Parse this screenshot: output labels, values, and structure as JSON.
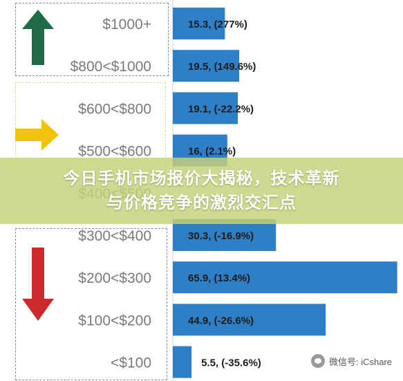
{
  "chart_data": {
    "type": "bar",
    "orientation": "horizontal",
    "categories": [
      "$1000+",
      "$800<$1000",
      "$600<$800",
      "$500<$600",
      "$400<$500",
      "$300<$400",
      "$200<$300",
      "$100<$200",
      "<$100"
    ],
    "values": [
      15.3,
      19.5,
      19.1,
      16,
      null,
      30.3,
      65.9,
      44.9,
      5.5
    ],
    "data_labels": [
      "15.3, (277%)",
      "19.5, (149.6%)",
      "19.1, (-22.2%)",
      "16, (2.1%)",
      "",
      "30.3, (-16.9%)",
      "65.9, (13.4%)",
      "44.9, (-26.6%)",
      "5.5, (-35.6%)"
    ],
    "xlim": [
      0,
      67
    ],
    "bar_color": "#2f7fc6",
    "groups": [
      {
        "arrow": "up",
        "color": "#1f6b45",
        "categories": [
          "$1000+",
          "$800<$1000"
        ]
      },
      {
        "arrow": "right",
        "color": "#f2c20c",
        "categories": [
          "$600<$800",
          "$500<$600"
        ]
      },
      {
        "arrow": "down",
        "color": "#cc2a2a",
        "categories": [
          "$300<$400",
          "$200<$300",
          "$100<$200",
          "<$100"
        ]
      }
    ]
  },
  "banner": {
    "line1": "今日手机市场报价大揭秘，技术革新",
    "line2": "与价格竞争的激烈交汇点"
  },
  "watermark": {
    "text": "微信号: iCshare",
    "icon": "wechat-icon"
  }
}
